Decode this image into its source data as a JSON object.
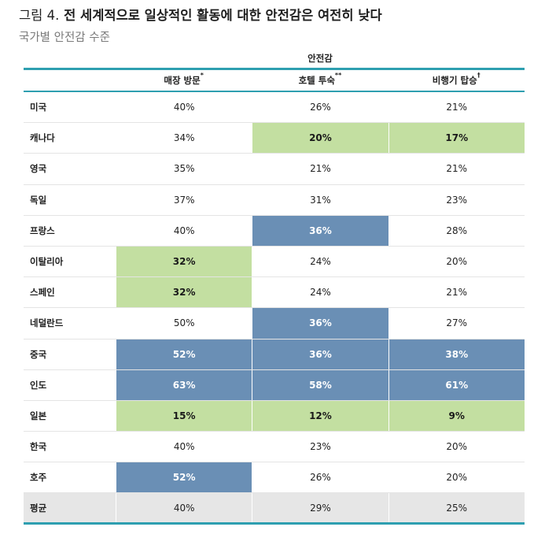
{
  "figure": {
    "label": "그림 4.",
    "title": "전 세계적으로 일상적인 활동에 대한 안전감은 여전히 낮다",
    "subtitle": "국가별 안전감 수준"
  },
  "colors": {
    "teal": "#2e9fb0",
    "blue": "#6a8fb5",
    "green": "#c3dfa1",
    "avg_bg": "#e6e6e6"
  },
  "chart_data": {
    "type": "table",
    "group_header": "안전감",
    "columns": [
      {
        "label": "매장 방문",
        "mark": "*"
      },
      {
        "label": "호텔 투숙",
        "mark": "**"
      },
      {
        "label": "비행기 탑승",
        "mark": "†"
      }
    ],
    "rows": [
      {
        "country": "미국",
        "values": [
          "40%",
          "26%",
          "21%"
        ],
        "highlight": [
          "",
          "",
          ""
        ]
      },
      {
        "country": "캐나다",
        "values": [
          "34%",
          "20%",
          "17%"
        ],
        "highlight": [
          "",
          "green",
          "green"
        ]
      },
      {
        "country": "영국",
        "values": [
          "35%",
          "21%",
          "21%"
        ],
        "highlight": [
          "",
          "",
          ""
        ]
      },
      {
        "country": "독일",
        "values": [
          "37%",
          "31%",
          "23%"
        ],
        "highlight": [
          "",
          "",
          ""
        ]
      },
      {
        "country": "프랑스",
        "values": [
          "40%",
          "36%",
          "28%"
        ],
        "highlight": [
          "",
          "blue",
          ""
        ]
      },
      {
        "country": "이탈리아",
        "values": [
          "32%",
          "24%",
          "20%"
        ],
        "highlight": [
          "green",
          "",
          ""
        ]
      },
      {
        "country": "스페인",
        "values": [
          "32%",
          "24%",
          "21%"
        ],
        "highlight": [
          "green",
          "",
          ""
        ]
      },
      {
        "country": "네덜란드",
        "values": [
          "50%",
          "36%",
          "27%"
        ],
        "highlight": [
          "",
          "blue",
          ""
        ]
      },
      {
        "country": "중국",
        "values": [
          "52%",
          "36%",
          "38%"
        ],
        "highlight": [
          "blue",
          "blue",
          "blue"
        ]
      },
      {
        "country": "인도",
        "values": [
          "63%",
          "58%",
          "61%"
        ],
        "highlight": [
          "blue",
          "blue",
          "blue"
        ]
      },
      {
        "country": "일본",
        "values": [
          "15%",
          "12%",
          "9%"
        ],
        "highlight": [
          "green",
          "green",
          "green"
        ]
      },
      {
        "country": "한국",
        "values": [
          "40%",
          "23%",
          "20%"
        ],
        "highlight": [
          "",
          "",
          ""
        ]
      },
      {
        "country": "호주",
        "values": [
          "52%",
          "26%",
          "20%"
        ],
        "highlight": [
          "blue",
          "",
          ""
        ]
      },
      {
        "country": "평균",
        "values": [
          "40%",
          "29%",
          "25%"
        ],
        "highlight": [
          "",
          "",
          ""
        ],
        "average": true
      }
    ]
  }
}
